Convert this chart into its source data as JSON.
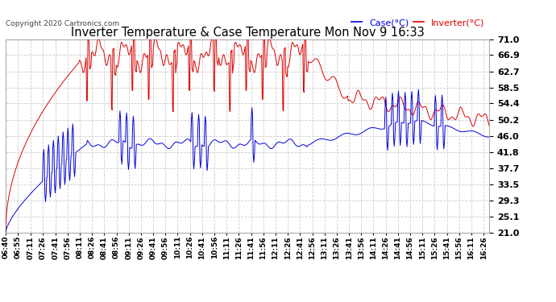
{
  "title": "Inverter Temperature & Case Temperature Mon Nov 9 16:33",
  "copyright": "Copyright 2020 Cartronics.com",
  "legend_case": "Case(°C)",
  "legend_inverter": "Inverter(°C)",
  "yticks": [
    21.0,
    25.1,
    29.3,
    33.5,
    37.7,
    41.8,
    46.0,
    50.2,
    54.4,
    58.5,
    62.7,
    66.9,
    71.0
  ],
  "ymin": 21.0,
  "ymax": 71.0,
  "background_color": "#ffffff",
  "plot_bg_color": "#ffffff",
  "case_color": "#0000dd",
  "inverter_color": "#dd0000",
  "title_color": "#000000",
  "copyright_color": "#444444",
  "grid_color": "#cccccc",
  "xtick_labels": [
    "06:40",
    "06:55",
    "07:11",
    "07:26",
    "07:41",
    "07:56",
    "08:11",
    "08:26",
    "08:41",
    "08:56",
    "09:11",
    "09:26",
    "09:41",
    "09:56",
    "10:11",
    "10:26",
    "10:41",
    "10:56",
    "11:11",
    "11:26",
    "11:41",
    "11:56",
    "12:11",
    "12:26",
    "12:41",
    "12:56",
    "13:11",
    "13:26",
    "13:41",
    "13:56",
    "14:11",
    "14:26",
    "14:41",
    "14:56",
    "15:11",
    "15:26",
    "15:41",
    "15:56",
    "16:11",
    "16:26"
  ]
}
